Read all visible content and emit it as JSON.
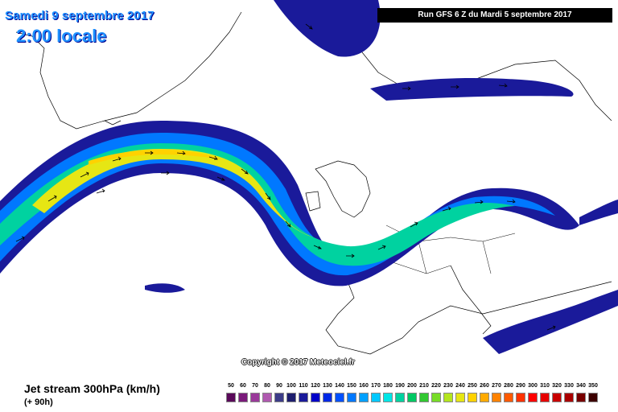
{
  "header": {
    "date": "Samedi 9 septembre 2017",
    "time": "2:00 locale",
    "run": "Run GFS 6 Z du Mardi 5 septembre 2017"
  },
  "copyright": "Copyright © 2017 Meteociel.fr",
  "footer": {
    "title": "Jet stream 300hPa (km/h)",
    "subtitle": "(+ 90h)"
  },
  "legend": {
    "ticks": [
      "50",
      "60",
      "70",
      "80",
      "90",
      "100",
      "110",
      "120",
      "130",
      "140",
      "150",
      "160",
      "170",
      "180",
      "190",
      "200",
      "210",
      "220",
      "230",
      "240",
      "250",
      "260",
      "270",
      "280",
      "290",
      "300",
      "310",
      "320",
      "330",
      "340",
      "350"
    ],
    "colors": [
      "#5a0a5a",
      "#7a1a7a",
      "#9a3a9a",
      "#b05ab0",
      "#3c3c88",
      "#1e1e6e",
      "#1a1a9a",
      "#0000c8",
      "#0028e6",
      "#0050ff",
      "#0078ff",
      "#00a0ff",
      "#00c8ff",
      "#00e6e6",
      "#00d2a0",
      "#00c864",
      "#32c832",
      "#78dc28",
      "#b4e61e",
      "#e6e614",
      "#ffd200",
      "#ffaa00",
      "#ff8200",
      "#ff5a00",
      "#ff3200",
      "#ff0000",
      "#e60000",
      "#c80000",
      "#aa0000",
      "#780000",
      "#3c0000"
    ]
  },
  "map": {
    "land_color": "#ffffff",
    "outline_color": "#000000",
    "arrow_color": "#000000"
  }
}
